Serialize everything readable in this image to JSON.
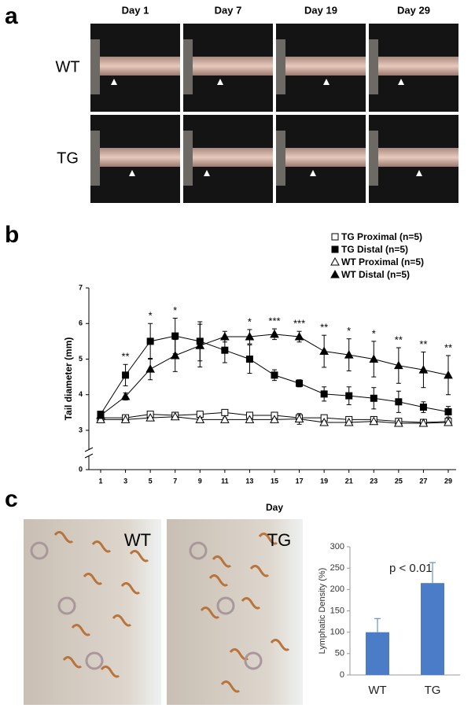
{
  "panels": {
    "labels": [
      "a",
      "b",
      "c"
    ],
    "days": [
      "Day 1",
      "Day 7",
      "Day 19",
      "Day 29"
    ],
    "rows": [
      "WT",
      "TG"
    ],
    "histology": [
      "WT",
      "TG"
    ]
  },
  "chart_data": [
    {
      "type": "line",
      "xlabel": "Day",
      "ylabel": "Tail diameter (mm)",
      "x": [
        1,
        3,
        5,
        7,
        9,
        11,
        13,
        15,
        17,
        19,
        21,
        23,
        25,
        27,
        29
      ],
      "xlim": [
        1,
        29
      ],
      "xticks": [
        1,
        3,
        5,
        7,
        9,
        11,
        13,
        15,
        17,
        19,
        21,
        23,
        25,
        27,
        29
      ],
      "ylim": [
        0,
        7
      ],
      "yticks": [
        0,
        3,
        4,
        5,
        6,
        7
      ],
      "axis_break": true,
      "series": [
        {
          "name": "TG Proximal (n=5)",
          "color": "#000000",
          "marker": "square-open",
          "values": [
            3.35,
            3.35,
            3.45,
            3.42,
            3.45,
            3.5,
            3.42,
            3.42,
            3.35,
            3.35,
            3.3,
            3.3,
            3.25,
            3.22,
            3.25
          ],
          "errors": [
            0.05,
            0.05,
            0.05,
            0.05,
            0.08,
            0.05,
            0.05,
            0.05,
            0.05,
            0.05,
            0.05,
            0.05,
            0.05,
            0.05,
            0.05
          ]
        },
        {
          "name": "TG Distal (n=5)",
          "color": "#000000",
          "marker": "square",
          "values": [
            3.45,
            4.55,
            5.5,
            5.65,
            5.5,
            5.25,
            5.0,
            4.55,
            4.32,
            4.02,
            3.97,
            3.9,
            3.8,
            3.65,
            3.52
          ],
          "errors": [
            0.05,
            0.3,
            0.5,
            0.5,
            0.55,
            0.35,
            0.4,
            0.15,
            0.1,
            0.2,
            0.25,
            0.3,
            0.3,
            0.15,
            0.15
          ]
        },
        {
          "name": "WT Proximal (n=5)",
          "color": "#000000",
          "marker": "triangle-open",
          "values": [
            3.3,
            3.3,
            3.35,
            3.38,
            3.3,
            3.3,
            3.3,
            3.3,
            3.32,
            3.22,
            3.22,
            3.25,
            3.2,
            3.2,
            3.22
          ],
          "errors": [
            0.05,
            0.05,
            0.05,
            0.05,
            0.05,
            0.05,
            0.05,
            0.05,
            0.15,
            0.05,
            0.05,
            0.05,
            0.05,
            0.05,
            0.05
          ]
        },
        {
          "name": "WT Distal (n=5)",
          "color": "#000000",
          "marker": "triangle",
          "values": [
            3.42,
            3.95,
            4.72,
            5.1,
            5.38,
            5.63,
            5.63,
            5.7,
            5.63,
            5.22,
            5.12,
            5.0,
            4.82,
            4.7,
            4.55
          ],
          "errors": [
            0.05,
            0.1,
            0.3,
            0.45,
            0.6,
            0.15,
            0.2,
            0.15,
            0.15,
            0.45,
            0.45,
            0.5,
            0.5,
            0.5,
            0.55
          ]
        }
      ],
      "significance": [
        null,
        "**",
        "*",
        "*",
        null,
        null,
        "*",
        "***",
        "***",
        "**",
        "*",
        "*",
        "**",
        "**",
        "**"
      ]
    },
    {
      "type": "bar",
      "ylabel": "Lymphatic Density (%)",
      "annotation": "p < 0.01",
      "categories": [
        "WT",
        "TG"
      ],
      "values": [
        100,
        215
      ],
      "errors": [
        32,
        48
      ],
      "color": "#4a7cc7",
      "ylim": [
        0,
        300
      ],
      "yticks": [
        0,
        50,
        100,
        150,
        200,
        250,
        300
      ]
    }
  ]
}
